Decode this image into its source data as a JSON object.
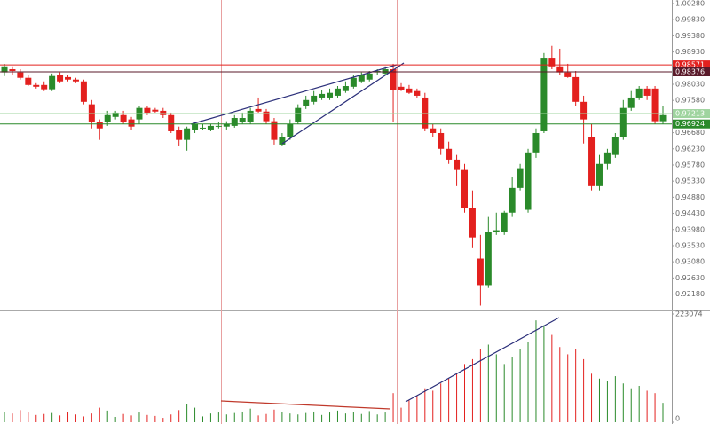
{
  "chart_data": [
    {
      "type": "candlestick",
      "up_color": "#2a8a2a",
      "down_color": "#e3201e",
      "open": [
        0.9836,
        0.9845,
        0.9836,
        0.9821,
        0.9801,
        0.9801,
        0.9789,
        0.9828,
        0.9823,
        0.9816,
        0.9811,
        0.9747,
        0.9697,
        0.9697,
        0.9712,
        0.9717,
        0.9705,
        0.9705,
        0.9737,
        0.9732,
        0.9729,
        0.9717,
        0.9675,
        0.9648,
        0.9675,
        0.968,
        0.9677,
        0.9685,
        0.9685,
        0.9687,
        0.9697,
        0.9697,
        0.9734,
        0.9727,
        0.97,
        0.9635,
        0.9655,
        0.9697,
        0.9742,
        0.9754,
        0.9766,
        0.9766,
        0.9771,
        0.9784,
        0.9796,
        0.9811,
        0.9816,
        0.9836,
        0.9833,
        0.9845,
        0.9796,
        0.9791,
        0.9784,
        0.9766,
        0.968,
        0.9667,
        0.9623,
        0.9593,
        0.9564,
        0.9458,
        0.9317,
        0.9243,
        0.9391,
        0.9391,
        0.9445,
        0.9514,
        0.9453,
        0.9613,
        0.9672,
        0.9877,
        0.9853,
        0.9836,
        0.9823,
        0.9754,
        0.9655,
        0.9519,
        0.9581,
        0.9606,
        0.9655,
        0.9737,
        0.9766,
        0.9791,
        0.9791,
        0.97
      ],
      "high": [
        0.986,
        0.9853,
        0.9845,
        0.9828,
        0.9806,
        0.9811,
        0.9833,
        0.9836,
        0.9828,
        0.9821,
        0.9816,
        0.9759,
        0.9705,
        0.9729,
        0.9729,
        0.9729,
        0.9712,
        0.9742,
        0.9742,
        0.9737,
        0.9737,
        0.9724,
        0.9685,
        0.9685,
        0.9697,
        0.9692,
        0.9692,
        0.9697,
        0.97,
        0.9717,
        0.9724,
        0.9737,
        0.9766,
        0.9734,
        0.9709,
        0.9667,
        0.9705,
        0.9747,
        0.9771,
        0.9784,
        0.9786,
        0.9791,
        0.9798,
        0.9811,
        0.9828,
        0.9836,
        0.984,
        0.9845,
        0.9853,
        0.986,
        0.9806,
        0.9801,
        0.9791,
        0.9779,
        0.9692,
        0.968,
        0.9643,
        0.9606,
        0.9581,
        0.9507,
        0.9383,
        0.9433,
        0.9445,
        0.945,
        0.9544,
        0.9581,
        0.9623,
        0.968,
        0.989,
        0.991,
        0.9902,
        0.986,
        0.984,
        0.9771,
        0.9692,
        0.9606,
        0.9623,
        0.9667,
        0.9759,
        0.9784,
        0.9798,
        0.9798,
        0.9798,
        0.9742
      ],
      "low": [
        0.9826,
        0.9828,
        0.9816,
        0.9798,
        0.9791,
        0.9784,
        0.9784,
        0.9806,
        0.9811,
        0.9806,
        0.9747,
        0.968,
        0.9648,
        0.9687,
        0.9705,
        0.9692,
        0.9675,
        0.9692,
        0.9717,
        0.9724,
        0.9709,
        0.9667,
        0.963,
        0.9618,
        0.9667,
        0.9675,
        0.9672,
        0.968,
        0.9677,
        0.9682,
        0.9692,
        0.9692,
        0.9724,
        0.9692,
        0.9635,
        0.963,
        0.9648,
        0.9692,
        0.9734,
        0.9747,
        0.9759,
        0.9759,
        0.9766,
        0.9779,
        0.9791,
        0.9806,
        0.9811,
        0.9828,
        0.9828,
        0.9697,
        0.9784,
        0.9776,
        0.9766,
        0.9672,
        0.9655,
        0.9606,
        0.9581,
        0.9519,
        0.9445,
        0.9346,
        0.9186,
        0.9235,
        0.9383,
        0.9383,
        0.9433,
        0.9507,
        0.9445,
        0.9598,
        0.9667,
        0.9845,
        0.9828,
        0.9821,
        0.9742,
        0.9638,
        0.9507,
        0.9507,
        0.9564,
        0.9598,
        0.9648,
        0.9729,
        0.9759,
        0.9759,
        0.9692,
        0.9692
      ],
      "close": [
        0.9853,
        0.984,
        0.9821,
        0.9801,
        0.9796,
        0.9789,
        0.9826,
        0.9811,
        0.9816,
        0.9811,
        0.9754,
        0.9697,
        0.968,
        0.9717,
        0.9724,
        0.9697,
        0.9685,
        0.9737,
        0.9724,
        0.9727,
        0.9717,
        0.9672,
        0.9648,
        0.968,
        0.9692,
        0.9682,
        0.9687,
        0.9687,
        0.9692,
        0.9709,
        0.9709,
        0.9729,
        0.9727,
        0.97,
        0.9648,
        0.9655,
        0.9692,
        0.9737,
        0.9759,
        0.9771,
        0.9776,
        0.9779,
        0.9791,
        0.9798,
        0.9821,
        0.9828,
        0.9833,
        0.984,
        0.9845,
        0.9786,
        0.9786,
        0.9779,
        0.9771,
        0.968,
        0.9667,
        0.9623,
        0.9593,
        0.9564,
        0.9458,
        0.9376,
        0.9243,
        0.9391,
        0.9396,
        0.9445,
        0.9514,
        0.9569,
        0.9613,
        0.9667,
        0.9877,
        0.9853,
        0.9836,
        0.9823,
        0.9754,
        0.9705,
        0.9519,
        0.9581,
        0.9613,
        0.9655,
        0.9737,
        0.9766,
        0.9791,
        0.9771,
        0.97,
        0.9717
      ],
      "ylim": [
        0.91724,
        1.00379
      ],
      "yticks": [
        {
          "value": 1.0028,
          "label": "1.00280"
        },
        {
          "value": 0.9983,
          "label": "0.99830"
        },
        {
          "value": 0.9938,
          "label": "0.99380"
        },
        {
          "value": 0.9893,
          "label": "0.98930"
        },
        {
          "value": 0.9803,
          "label": "0.98030"
        },
        {
          "value": 0.9758,
          "label": "0.97580"
        },
        {
          "value": 0.9668,
          "label": "0.96680"
        },
        {
          "value": 0.9623,
          "label": "0.96230"
        },
        {
          "value": 0.9578,
          "label": "0.95780"
        },
        {
          "value": 0.9533,
          "label": "0.95330"
        },
        {
          "value": 0.9488,
          "label": "0.94880"
        },
        {
          "value": 0.9443,
          "label": "0.94430"
        },
        {
          "value": 0.9398,
          "label": "0.93980"
        },
        {
          "value": 0.9353,
          "label": "0.93530"
        },
        {
          "value": 0.9308,
          "label": "0.93080"
        },
        {
          "value": 0.9263,
          "label": "0.92630"
        },
        {
          "value": 0.9218,
          "label": "0.92180"
        }
      ],
      "levels": [
        {
          "value": 0.98571,
          "color": "#e3201e"
        },
        {
          "value": 0.98376,
          "color": "#5a1a2a"
        },
        {
          "value": 0.97213,
          "color": "#9fd49f"
        },
        {
          "value": 0.96924,
          "color": "#2a8a2a"
        }
      ]
    },
    {
      "type": "volume",
      "values": [
        22000,
        18000,
        25000,
        20000,
        15000,
        17000,
        19000,
        14000,
        21000,
        16000,
        12000,
        18000,
        30000,
        24000,
        11000,
        17000,
        14000,
        20000,
        15000,
        13000,
        9000,
        16000,
        25000,
        38000,
        30000,
        12000,
        18000,
        20000,
        16000,
        19000,
        22000,
        28000,
        14000,
        17000,
        26000,
        21000,
        18000,
        16000,
        19000,
        22000,
        15000,
        20000,
        24000,
        18000,
        21000,
        17000,
        23000,
        16000,
        20000,
        60000,
        30000,
        45000,
        55000,
        70000,
        65000,
        80000,
        90000,
        100000,
        120000,
        130000,
        150000,
        160000,
        140000,
        120000,
        135000,
        150000,
        165000,
        210000,
        200000,
        180000,
        155000,
        140000,
        150000,
        130000,
        100000,
        90000,
        85000,
        95000,
        80000,
        70000,
        75000,
        65000,
        60000,
        40000
      ],
      "ylim": [
        0,
        223074
      ],
      "yticks": [
        0,
        223074
      ]
    }
  ]
}
